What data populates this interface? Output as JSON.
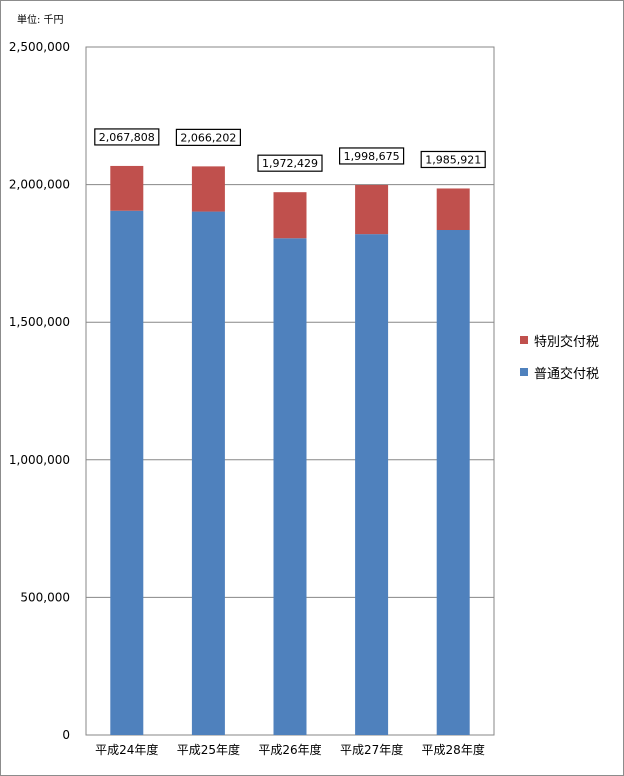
{
  "unit_label": "単位: 千円",
  "chart_data": {
    "type": "bar",
    "stacked": true,
    "categories": [
      "平成24年度",
      "平成25年度",
      "平成26年度",
      "平成27年度",
      "平成28年度"
    ],
    "series": [
      {
        "name": "普通交付税",
        "color": "#4f81bd",
        "values": [
          1905000,
          1902000,
          1805000,
          1820000,
          1835000
        ]
      },
      {
        "name": "特別交付税",
        "color": "#c0504d",
        "values": [
          162808,
          164202,
          167429,
          178675,
          150921
        ]
      }
    ],
    "totals": [
      2067808,
      2066202,
      1972429,
      1998675,
      1985921
    ],
    "total_labels": [
      "2,067,808",
      "2,066,202",
      "1,972,429",
      "1,998,675",
      "1,985,921"
    ],
    "ylim": [
      0,
      2500000
    ],
    "yticks": [
      0,
      500000,
      1000000,
      1500000,
      2000000,
      2500000
    ],
    "ytick_labels": [
      "0",
      "500,000",
      "1,000,000",
      "1,500,000",
      "2,000,000",
      "2,500,000"
    ],
    "grid": true,
    "legend": "right"
  }
}
